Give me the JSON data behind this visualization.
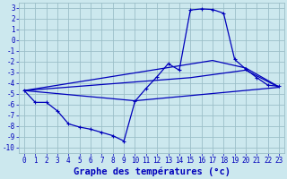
{
  "xlabel": "Graphe des températures (°c)",
  "bg_color": "#cce8ee",
  "grid_color": "#9bbfc8",
  "line_color": "#0000bb",
  "xlim": [
    -0.5,
    23.5
  ],
  "ylim": [
    -10.5,
    3.5
  ],
  "yticks": [
    3,
    2,
    1,
    0,
    -1,
    -2,
    -3,
    -4,
    -5,
    -6,
    -7,
    -8,
    -9,
    -10
  ],
  "xticks": [
    0,
    1,
    2,
    3,
    4,
    5,
    6,
    7,
    8,
    9,
    10,
    11,
    12,
    13,
    14,
    15,
    16,
    17,
    18,
    19,
    20,
    21,
    22,
    23
  ],
  "main_x": [
    0,
    1,
    2,
    3,
    4,
    5,
    6,
    7,
    8,
    9,
    10,
    11,
    12,
    13,
    14,
    15,
    16,
    17,
    18,
    19,
    20,
    21,
    22,
    23
  ],
  "main_y": [
    -4.7,
    -5.8,
    -5.8,
    -6.6,
    -7.8,
    -8.1,
    -8.3,
    -8.6,
    -8.9,
    -9.4,
    -5.7,
    -4.5,
    -3.4,
    -2.2,
    -2.8,
    2.8,
    2.9,
    2.85,
    2.5,
    -1.8,
    -2.7,
    -3.5,
    -4.2,
    -4.3
  ],
  "line2_x": [
    0,
    10,
    23
  ],
  "line2_y": [
    -4.7,
    -5.65,
    -4.4
  ],
  "line3_x": [
    0,
    15,
    20,
    23
  ],
  "line3_y": [
    -4.7,
    -3.5,
    -2.8,
    -4.4
  ],
  "line4_x": [
    0,
    17,
    20,
    23
  ],
  "line4_y": [
    -4.7,
    -1.9,
    -2.6,
    -4.35
  ],
  "tick_font_size": 5.5,
  "xlabel_font_size": 7.5
}
